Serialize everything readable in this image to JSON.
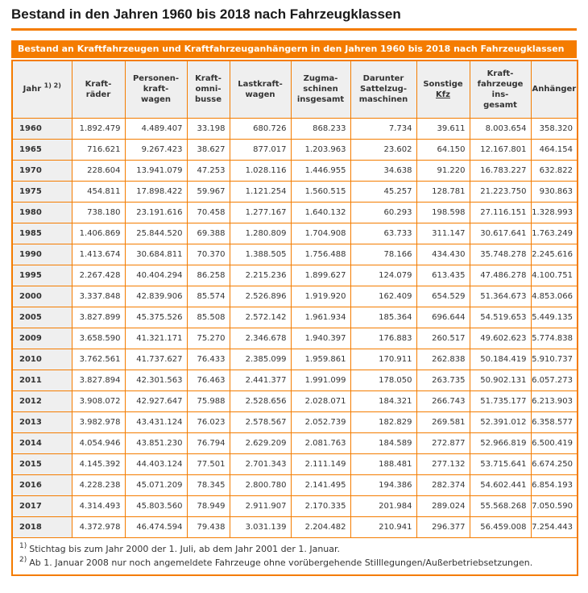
{
  "page_title": "Bestand in den Jahren 1960 bis 2018 nach Fahrzeugklassen",
  "colors": {
    "accent": "#f47c00",
    "header_bg": "#efefef",
    "text": "#333333"
  },
  "table": {
    "caption": "Bestand an Kraftfahrzeugen und Kraftfahrzeuganhängern in den Jahren 1960 bis 2018 nach Fahrzeugklassen",
    "columns": {
      "jahr": {
        "label": "Jahr",
        "sup": "1) 2)"
      },
      "kraftraeder": {
        "label": "Kraft-\nräder"
      },
      "personenkraftwagen": {
        "label": "Personen-\nkraft-\nwagen"
      },
      "kraftomnibusse": {
        "label": "Kraft-\nomni-\nbusse"
      },
      "lastkraftwagen": {
        "label": "Lastkraft-\nwagen"
      },
      "zugmaschinen": {
        "label": "Zugma-\nschinen\ninsgesamt"
      },
      "sattelzugmaschinen": {
        "label": "Darunter\nSattelzug-\nmaschinen"
      },
      "sonstige": {
        "label": "Sonstige",
        "label2": "Kfz"
      },
      "kraftfahrzeuge_insgesamt": {
        "label": "Kraft-\nfahrzeuge\nins-\ngesamt"
      },
      "anhaenger": {
        "label": "Anhänger"
      }
    },
    "rows": [
      {
        "year": "1960",
        "values": [
          "1.892.479",
          "4.489.407",
          "33.198",
          "680.726",
          "868.233",
          "7.734",
          "39.611",
          "8.003.654",
          "358.320"
        ]
      },
      {
        "year": "1965",
        "values": [
          "716.621",
          "9.267.423",
          "38.627",
          "877.017",
          "1.203.963",
          "23.602",
          "64.150",
          "12.167.801",
          "464.154"
        ]
      },
      {
        "year": "1970",
        "values": [
          "228.604",
          "13.941.079",
          "47.253",
          "1.028.116",
          "1.446.955",
          "34.638",
          "91.220",
          "16.783.227",
          "632.822"
        ]
      },
      {
        "year": "1975",
        "values": [
          "454.811",
          "17.898.422",
          "59.967",
          "1.121.254",
          "1.560.515",
          "45.257",
          "128.781",
          "21.223.750",
          "930.863"
        ]
      },
      {
        "year": "1980",
        "values": [
          "738.180",
          "23.191.616",
          "70.458",
          "1.277.167",
          "1.640.132",
          "60.293",
          "198.598",
          "27.116.151",
          "1.328.993"
        ]
      },
      {
        "year": "1985",
        "values": [
          "1.406.869",
          "25.844.520",
          "69.388",
          "1.280.809",
          "1.704.908",
          "63.733",
          "311.147",
          "30.617.641",
          "1.763.249"
        ]
      },
      {
        "year": "1990",
        "values": [
          "1.413.674",
          "30.684.811",
          "70.370",
          "1.388.505",
          "1.756.488",
          "78.166",
          "434.430",
          "35.748.278",
          "2.245.616"
        ]
      },
      {
        "year": "1995",
        "values": [
          "2.267.428",
          "40.404.294",
          "86.258",
          "2.215.236",
          "1.899.627",
          "124.079",
          "613.435",
          "47.486.278",
          "4.100.751"
        ]
      },
      {
        "year": "2000",
        "values": [
          "3.337.848",
          "42.839.906",
          "85.574",
          "2.526.896",
          "1.919.920",
          "162.409",
          "654.529",
          "51.364.673",
          "4.853.066"
        ]
      },
      {
        "year": "2005",
        "values": [
          "3.827.899",
          "45.375.526",
          "85.508",
          "2.572.142",
          "1.961.934",
          "185.364",
          "696.644",
          "54.519.653",
          "5.449.135"
        ]
      },
      {
        "year": "2009",
        "values": [
          "3.658.590",
          "41.321.171",
          "75.270",
          "2.346.678",
          "1.940.397",
          "176.883",
          "260.517",
          "49.602.623",
          "5.774.838"
        ]
      },
      {
        "year": "2010",
        "values": [
          "3.762.561",
          "41.737.627",
          "76.433",
          "2.385.099",
          "1.959.861",
          "170.911",
          "262.838",
          "50.184.419",
          "5.910.737"
        ]
      },
      {
        "year": "2011",
        "values": [
          "3.827.894",
          "42.301.563",
          "76.463",
          "2.441.377",
          "1.991.099",
          "178.050",
          "263.735",
          "50.902.131",
          "6.057.273"
        ]
      },
      {
        "year": "2012",
        "values": [
          "3.908.072",
          "42.927.647",
          "75.988",
          "2.528.656",
          "2.028.071",
          "184.321",
          "266.743",
          "51.735.177",
          "6.213.903"
        ]
      },
      {
        "year": "2013",
        "values": [
          "3.982.978",
          "43.431.124",
          "76.023",
          "2.578.567",
          "2.052.739",
          "182.829",
          "269.581",
          "52.391.012",
          "6.358.577"
        ]
      },
      {
        "year": "2014",
        "values": [
          "4.054.946",
          "43.851.230",
          "76.794",
          "2.629.209",
          "2.081.763",
          "184.589",
          "272.877",
          "52.966.819",
          "6.500.419"
        ]
      },
      {
        "year": "2015",
        "values": [
          "4.145.392",
          "44.403.124",
          "77.501",
          "2.701.343",
          "2.111.149",
          "188.481",
          "277.132",
          "53.715.641",
          "6.674.250"
        ]
      },
      {
        "year": "2016",
        "values": [
          "4.228.238",
          "45.071.209",
          "78.345",
          "2.800.780",
          "2.141.495",
          "194.386",
          "282.374",
          "54.602.441",
          "6.854.193"
        ]
      },
      {
        "year": "2017",
        "values": [
          "4.314.493",
          "45.803.560",
          "78.949",
          "2.911.907",
          "2.170.335",
          "201.984",
          "289.024",
          "55.568.268",
          "7.050.590"
        ]
      },
      {
        "year": "2018",
        "values": [
          "4.372.978",
          "46.474.594",
          "79.438",
          "3.031.139",
          "2.204.482",
          "210.941",
          "296.377",
          "56.459.008",
          "7.254.443"
        ]
      }
    ],
    "footnotes": [
      {
        "marker": "1)",
        "text": "Stichtag bis zum Jahr 2000 der 1. Juli, ab dem Jahr 2001 der 1. Januar."
      },
      {
        "marker": "2)",
        "text": "Ab 1. Januar 2008 nur noch angemeldete Fahrzeuge ohne vorübergehende Stilllegungen/Außerbetriebsetzungen."
      }
    ]
  }
}
